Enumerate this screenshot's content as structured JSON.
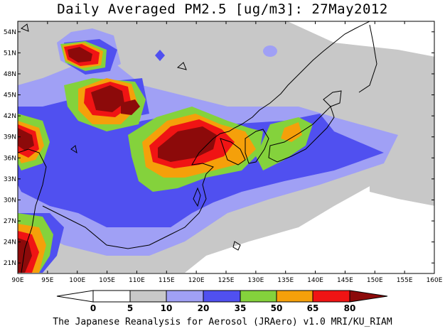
{
  "title": "Daily Averaged PM2.5 [ug/m3]: 27May2012",
  "footer": "The Japanese Reanalysis for Aerosol (JRAero) v1.0 MRI/KU_RIAM",
  "map": {
    "lon_range": [
      90,
      160
    ],
    "lat_range": [
      19.5,
      55.5
    ],
    "lat_ticks": [
      "21N",
      "24N",
      "27N",
      "30N",
      "33N",
      "36N",
      "39N",
      "42N",
      "45N",
      "48N",
      "51N",
      "54N"
    ],
    "lon_ticks": [
      "90E",
      "95E",
      "100E",
      "105E",
      "110E",
      "115E",
      "120E",
      "125E",
      "130E",
      "135E",
      "140E",
      "145E",
      "150E",
      "155E",
      "160E"
    ]
  },
  "colorbar": {
    "labels": [
      "0",
      "5",
      "10",
      "20",
      "35",
      "50",
      "65",
      "80"
    ],
    "colors": [
      "#ffffff",
      "#c8c8c8",
      "#a0a0f5",
      "#5050f0",
      "#84d23c",
      "#f5a00a",
      "#f01414",
      "#8c0a0a"
    ]
  }
}
